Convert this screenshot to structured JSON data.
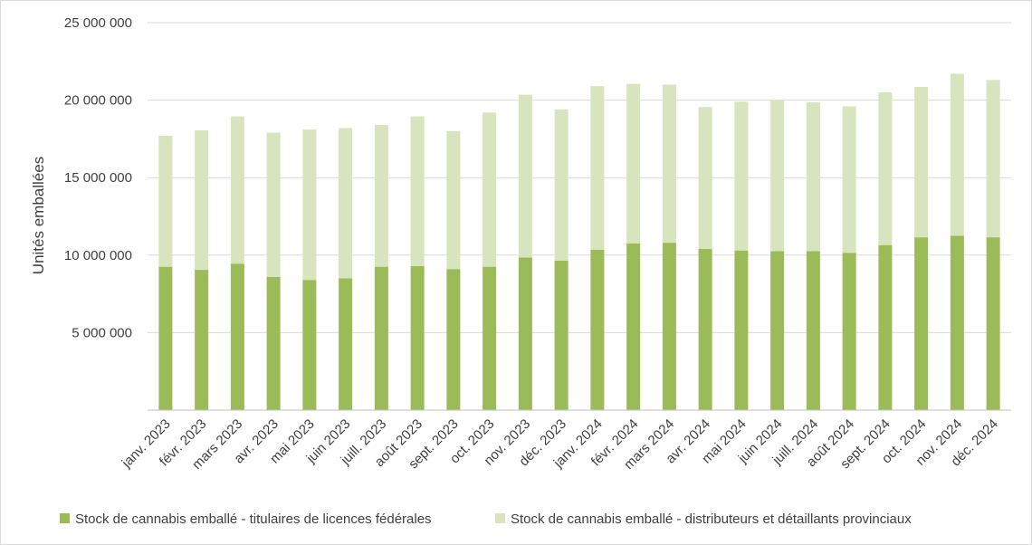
{
  "chart_data": {
    "type": "bar",
    "stacked": true,
    "title": "",
    "xlabel": "",
    "ylabel": "Unités emballées",
    "ylim": [
      0,
      25000000
    ],
    "yticks": [
      0,
      5000000,
      10000000,
      15000000,
      20000000,
      25000000
    ],
    "ytick_labels": [
      "",
      "5 000 000",
      "10 000 000",
      "15 000 000",
      "20 000 000",
      "25 000 000"
    ],
    "grid": true,
    "legend_position": "bottom",
    "categories": [
      "janv. 2023",
      "févr. 2023",
      "mars 2023",
      "avr. 2023",
      "mai 2023",
      "juin 2023",
      "juill. 2023",
      "août 2023",
      "sept. 2023",
      "oct. 2023",
      "nov. 2023",
      "déc. 2023",
      "janv. 2024",
      "févr. 2024",
      "mars 2024",
      "avr. 2024",
      "mai 2024",
      "juin 2024",
      "juill. 2024",
      "août 2024",
      "sept. 2024",
      "oct. 2024",
      "nov. 2024",
      "déc. 2024"
    ],
    "series": [
      {
        "name": "Stock de cannabis emballé - titulaires de licences fédérales",
        "color": "#9bbb59",
        "values": [
          9250000,
          9050000,
          9450000,
          8600000,
          8400000,
          8500000,
          9250000,
          9300000,
          9100000,
          9250000,
          9850000,
          9650000,
          10350000,
          10750000,
          10800000,
          10400000,
          10300000,
          10250000,
          10250000,
          10150000,
          10650000,
          11150000,
          11250000,
          11150000
        ]
      },
      {
        "name": "Stock de cannabis emballé - distributeurs et détaillants provinciaux",
        "color": "#d7e4bd",
        "values": [
          8450000,
          9000000,
          9500000,
          9300000,
          9700000,
          9700000,
          9150000,
          9650000,
          8900000,
          9950000,
          10500000,
          9750000,
          10550000,
          10300000,
          10200000,
          9150000,
          9600000,
          9750000,
          9600000,
          9450000,
          9850000,
          9700000,
          10450000,
          10150000
        ]
      }
    ]
  }
}
